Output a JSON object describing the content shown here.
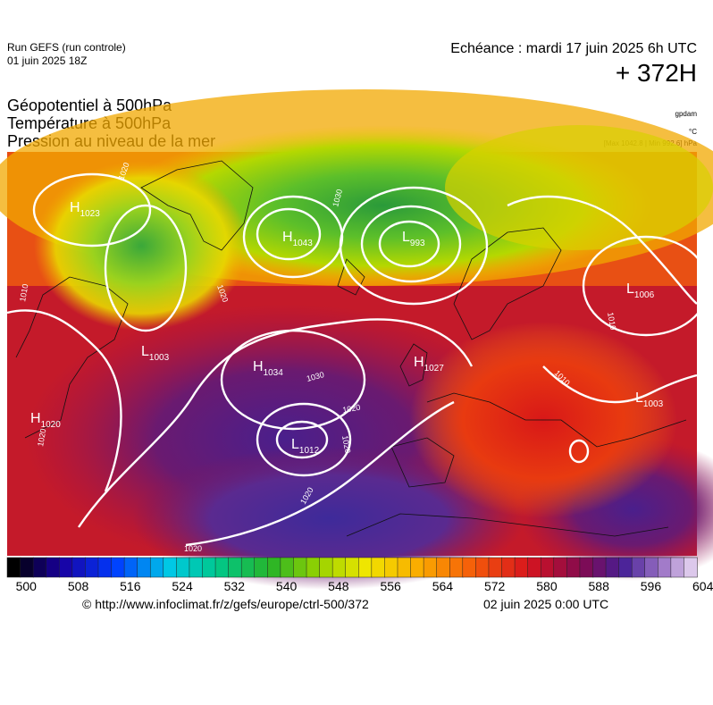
{
  "header": {
    "run_line1": "Run GEFS (run controle)",
    "run_line2": "01 juin 2025 18Z",
    "validity": "Echéance : mardi 17 juin 2025 6h UTC",
    "forecast_hour": "+ 372H"
  },
  "titles": {
    "line1": "Géopotentiel à 500hPa",
    "line2": "Température à 500hPa",
    "line3": "Pression au niveau de la mer"
  },
  "units": {
    "geopotential": "gpdam",
    "temperature": "°C",
    "pressure": "[Max 1042.8 | Min 992.6] hPa"
  },
  "pressure_centers": [
    {
      "type": "H",
      "value": "1023"
    },
    {
      "type": "H",
      "value": "1043"
    },
    {
      "type": "L",
      "value": "993"
    },
    {
      "type": "L",
      "value": "1006"
    },
    {
      "type": "H",
      "value": "1034"
    },
    {
      "type": "H",
      "value": "1027"
    },
    {
      "type": "L",
      "value": "1003"
    },
    {
      "type": "H",
      "value": "1020"
    },
    {
      "type": "L",
      "value": "1012"
    },
    {
      "type": "L",
      "value": "1003"
    }
  ],
  "isobar_labels": [
    "1020",
    "1030",
    "1010",
    "1020",
    "1030",
    "1020",
    "1020",
    "1020",
    "1020",
    "1010",
    "1010",
    "1020"
  ],
  "colorbar": {
    "min": 500,
    "max": 606,
    "step": 2,
    "tick_labels": [
      "500",
      "508",
      "516",
      "524",
      "532",
      "540",
      "548",
      "556",
      "564",
      "572",
      "580",
      "588",
      "596",
      "604"
    ]
  },
  "colors": {
    "ridge_purple": "#4b2390",
    "high_red": "#c8102e",
    "trough_green": "#3fb53f",
    "isobar_white": "#ffffff"
  },
  "footer": {
    "source": "© http://www.infoclimat.fr/z/gefs/europe/ctrl-500/372",
    "issued": "02 juin 2025  0:00 UTC"
  }
}
